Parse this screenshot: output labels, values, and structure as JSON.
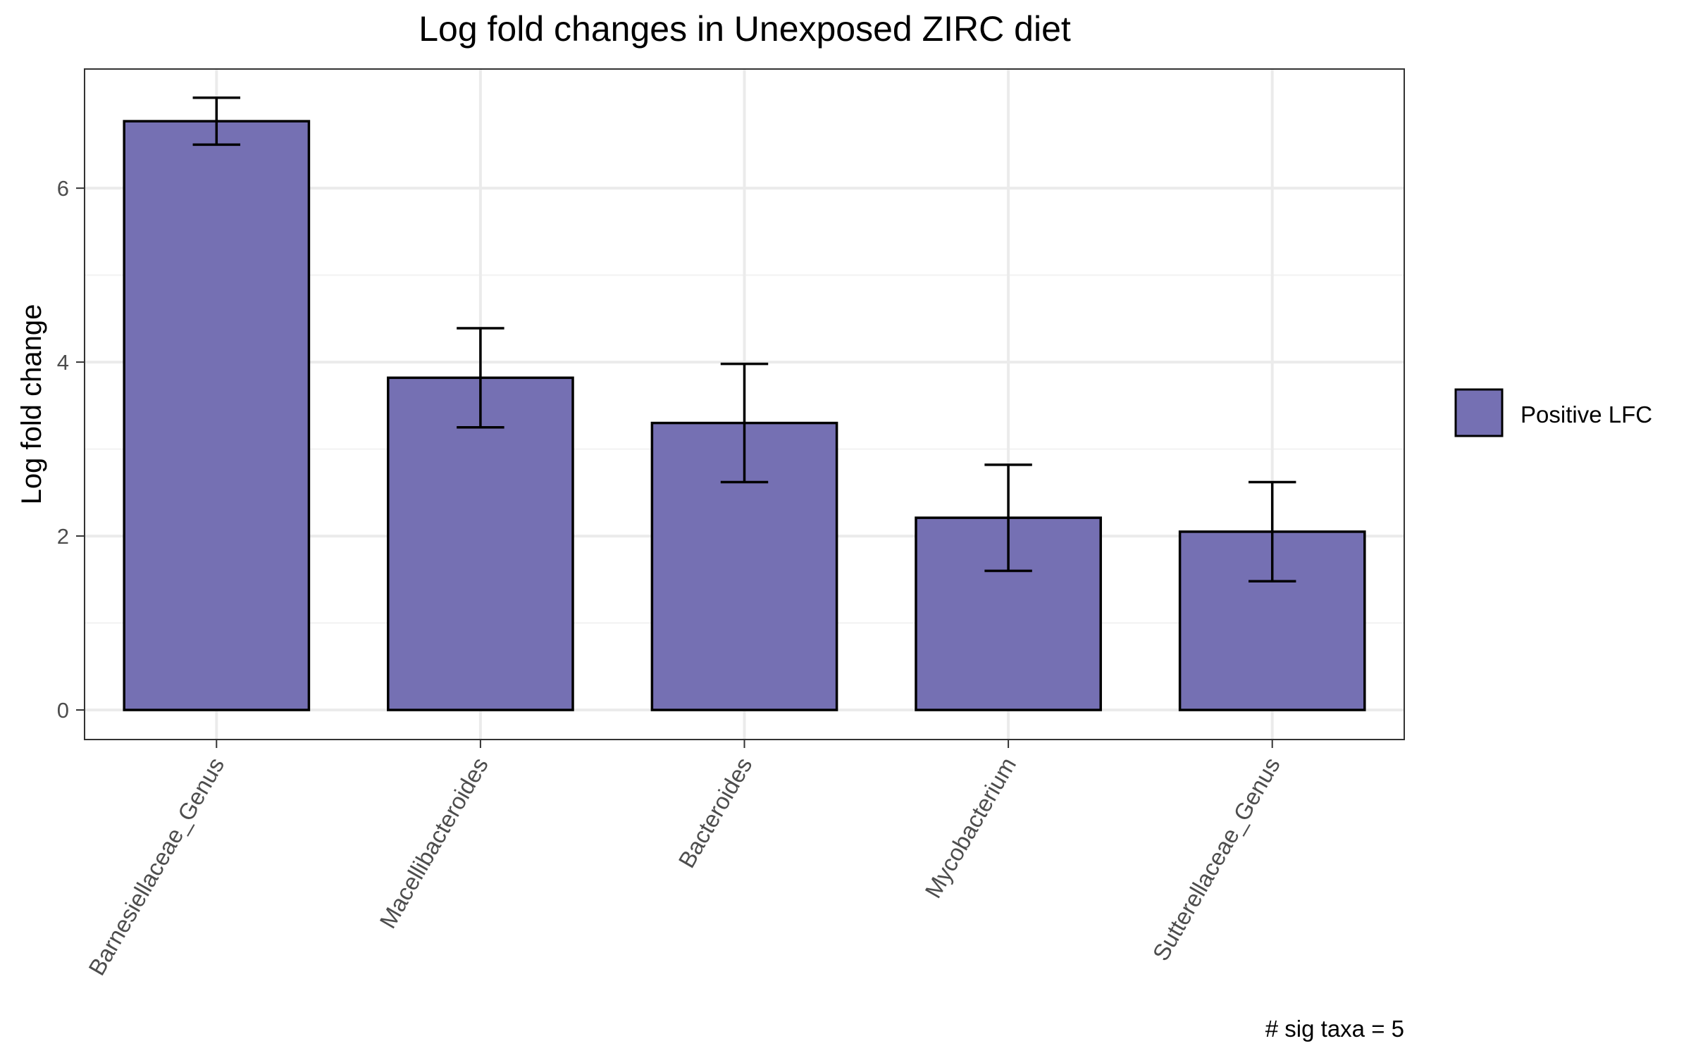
{
  "chart_data": {
    "type": "bar",
    "title": "Log fold changes in Unexposed ZIRC diet",
    "xlabel": "",
    "ylabel": "Log fold change",
    "categories": [
      "Barnesiellaceae_Genus",
      "Macellibacteroides",
      "Bacteroides",
      "Mycobacterium",
      "Sutterellaceae_Genus"
    ],
    "series": [
      {
        "name": "Positive LFC",
        "values": [
          6.77,
          3.82,
          3.3,
          2.21,
          2.05
        ],
        "error_low": [
          6.5,
          3.25,
          2.62,
          1.6,
          1.48
        ],
        "error_high": [
          7.04,
          4.39,
          3.98,
          2.82,
          2.62
        ],
        "color": "#7570b3"
      }
    ],
    "ylim": [
      -0.34,
      7.37
    ],
    "yticks": [
      0,
      2,
      4,
      6
    ],
    "grid": true,
    "legend_position": "right",
    "annotation": "# sig taxa = 5"
  }
}
